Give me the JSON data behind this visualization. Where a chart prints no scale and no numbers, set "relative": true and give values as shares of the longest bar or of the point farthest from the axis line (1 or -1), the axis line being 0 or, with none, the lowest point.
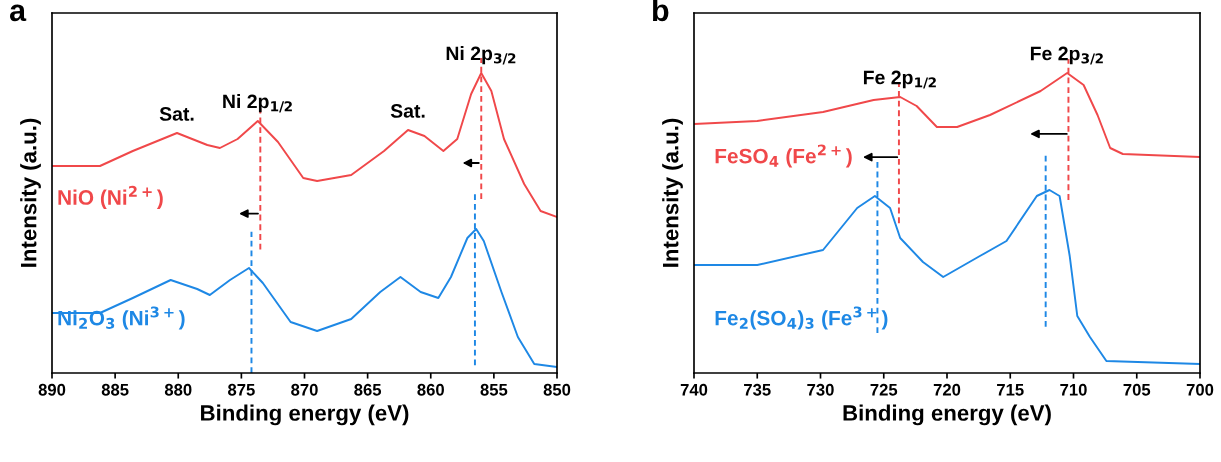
{
  "chart_data": [
    {
      "type": "line",
      "title": "a",
      "xlabel": "Binding energy (eV)",
      "ylabel": "Intensity (a.u.)",
      "relative": true,
      "tick_labels": "x",
      "grid": false,
      "legend": false,
      "xlim": [
        890,
        850
      ],
      "xticks": [
        890,
        885,
        880,
        875,
        870,
        865,
        860,
        855,
        850
      ],
      "series": [
        {
          "name": "NiO (Ni$^{2+}$)",
          "color": "#f0484a",
          "x": [
            890,
            886.2,
            883.6,
            880.1,
            877.7,
            876.7,
            875.3,
            873.7,
            872.1,
            870.1,
            869.0,
            866.3,
            863.7,
            861.8,
            860.5,
            859.0,
            857.9,
            856.8,
            856.0,
            855.2,
            854.2,
            852.6,
            851.3,
            850
          ],
          "values": [
            0.69,
            0.69,
            0.74,
            0.8,
            0.76,
            0.75,
            0.78,
            0.84,
            0.77,
            0.65,
            0.64,
            0.66,
            0.74,
            0.81,
            0.79,
            0.74,
            0.78,
            0.93,
            1.0,
            0.94,
            0.78,
            0.63,
            0.54,
            0.52
          ]
        },
        {
          "name": "Ni$_{2}$O$_{3}$ (Ni$^{3+}$)",
          "color": "#1e88e5",
          "x": [
            890,
            886.2,
            883.6,
            880.6,
            878.5,
            877.5,
            875.9,
            874.4,
            873.3,
            871.1,
            869.0,
            866.3,
            864.0,
            862.4,
            860.8,
            859.4,
            858.4,
            857.1,
            856.4,
            855.8,
            854.4,
            853.1,
            851.8,
            850
          ],
          "values": [
            0.2,
            0.2,
            0.25,
            0.31,
            0.28,
            0.26,
            0.31,
            0.35,
            0.3,
            0.17,
            0.14,
            0.18,
            0.27,
            0.32,
            0.27,
            0.25,
            0.32,
            0.45,
            0.48,
            0.44,
            0.27,
            0.12,
            0.03,
            0.02
          ]
        }
      ],
      "ref_lines": [
        {
          "axis": "x",
          "value": 873.5,
          "color": "#f0484a",
          "line_style": "dashed"
        },
        {
          "axis": "x",
          "value": 874.2,
          "color": "#1e88e5",
          "line_style": "dashed"
        },
        {
          "axis": "x",
          "value": 856.0,
          "color": "#f0484a",
          "line_style": "dashed"
        },
        {
          "axis": "x",
          "value": 856.5,
          "color": "#1e88e5",
          "line_style": "dashed"
        }
      ],
      "annotations": [
        {
          "text": "Sat.",
          "x": 880.1,
          "y": 0.8
        },
        {
          "text": "Ni 2p$_{1/2}$",
          "x": 873.7,
          "y": 0.84
        },
        {
          "text": "Sat.",
          "x": 861.8,
          "y": 0.81
        },
        {
          "text": "Ni 2p$_{3/2}$",
          "x": 856.0,
          "y": 1.0
        }
      ]
    },
    {
      "type": "line",
      "title": "b",
      "xlabel": "Binding energy (eV)",
      "ylabel": "Intensity (a.u.)",
      "relative": true,
      "tick_labels": "x",
      "grid": false,
      "legend": false,
      "xlim": [
        740,
        700
      ],
      "xticks": [
        740,
        735,
        730,
        725,
        720,
        715,
        710,
        705,
        700
      ],
      "series": [
        {
          "name": "FeSO$_{4}$ (Fe$^{2+}$)",
          "color": "#f0484a",
          "x": [
            740,
            735.0,
            729.8,
            725.8,
            723.7,
            722.4,
            720.8,
            719.2,
            716.6,
            712.6,
            710.5,
            709.2,
            708.1,
            707.1,
            706.1,
            700
          ],
          "values": [
            0.83,
            0.84,
            0.87,
            0.91,
            0.92,
            0.89,
            0.82,
            0.82,
            0.86,
            0.94,
            1.0,
            0.96,
            0.86,
            0.75,
            0.73,
            0.72
          ]
        },
        {
          "name": "Fe$_{2}$(SO$_{4}$)$_{3}$ (Fe$^{3+}$)",
          "color": "#1e88e5",
          "x": [
            740,
            735,
            729.8,
            727.1,
            725.7,
            724.5,
            723.7,
            721.9,
            720.3,
            717.4,
            715.3,
            712.9,
            711.9,
            711.1,
            710.3,
            709.7,
            708.7,
            707.4,
            700
          ],
          "values": [
            0.36,
            0.36,
            0.41,
            0.55,
            0.59,
            0.55,
            0.45,
            0.37,
            0.32,
            0.39,
            0.44,
            0.59,
            0.61,
            0.59,
            0.39,
            0.19,
            0.12,
            0.04,
            0.03
          ]
        }
      ],
      "ref_lines": [
        {
          "axis": "x",
          "value": 723.8,
          "color": "#f0484a",
          "line_style": "dashed"
        },
        {
          "axis": "x",
          "value": 725.5,
          "color": "#1e88e5",
          "line_style": "dashed"
        },
        {
          "axis": "x",
          "value": 710.4,
          "color": "#f0484a",
          "line_style": "dashed"
        },
        {
          "axis": "x",
          "value": 712.2,
          "color": "#1e88e5",
          "line_style": "dashed"
        }
      ],
      "annotations": [
        {
          "text": "Fe 2p$_{1/2}$",
          "x": 723.7,
          "y": 0.92
        },
        {
          "text": "Fe 2p$_{3/2}$",
          "x": 710.5,
          "y": 1.0
        }
      ]
    }
  ]
}
